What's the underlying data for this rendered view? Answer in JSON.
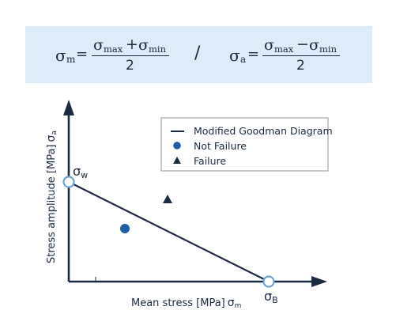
{
  "formula": {
    "sigma_m_lhs": "σ",
    "sigma_m_lhs_sub": "m",
    "eq": "=",
    "num_a_sym1": "σ",
    "num_a_sub1": "max",
    "num_a_op": "+",
    "num_a_sym2": "σ",
    "num_a_sub2": "min",
    "den_a": "2",
    "separator": "/",
    "sigma_a_lhs": "σ",
    "sigma_a_lhs_sub": "a",
    "num_b_sym1": "σ",
    "num_b_sub1": "max",
    "num_b_op": "−",
    "num_b_sym2": "σ",
    "num_b_sub2": "min",
    "den_b": "2"
  },
  "diagram": {
    "y_axis_label": "Stress amplitude  [MPa]",
    "y_axis_symbol": "σ",
    "y_axis_symbol_sub": "a",
    "x_axis_label": "Mean stress  [MPa]",
    "x_axis_symbol": "σ",
    "x_axis_symbol_sub": "m",
    "point_w_label": "σ",
    "point_w_sub": "w",
    "point_b_label": "σ",
    "point_b_sub": "B",
    "legend": {
      "line": "Modified Goodman Diagram",
      "circle": "Not Failure",
      "triangle": "Failure"
    }
  },
  "colors": {
    "formula_bg": "#dcecf9",
    "ink": "#1a2a40",
    "point_blue": "#1f5fa8",
    "ring_blue": "#6aa4d8"
  }
}
